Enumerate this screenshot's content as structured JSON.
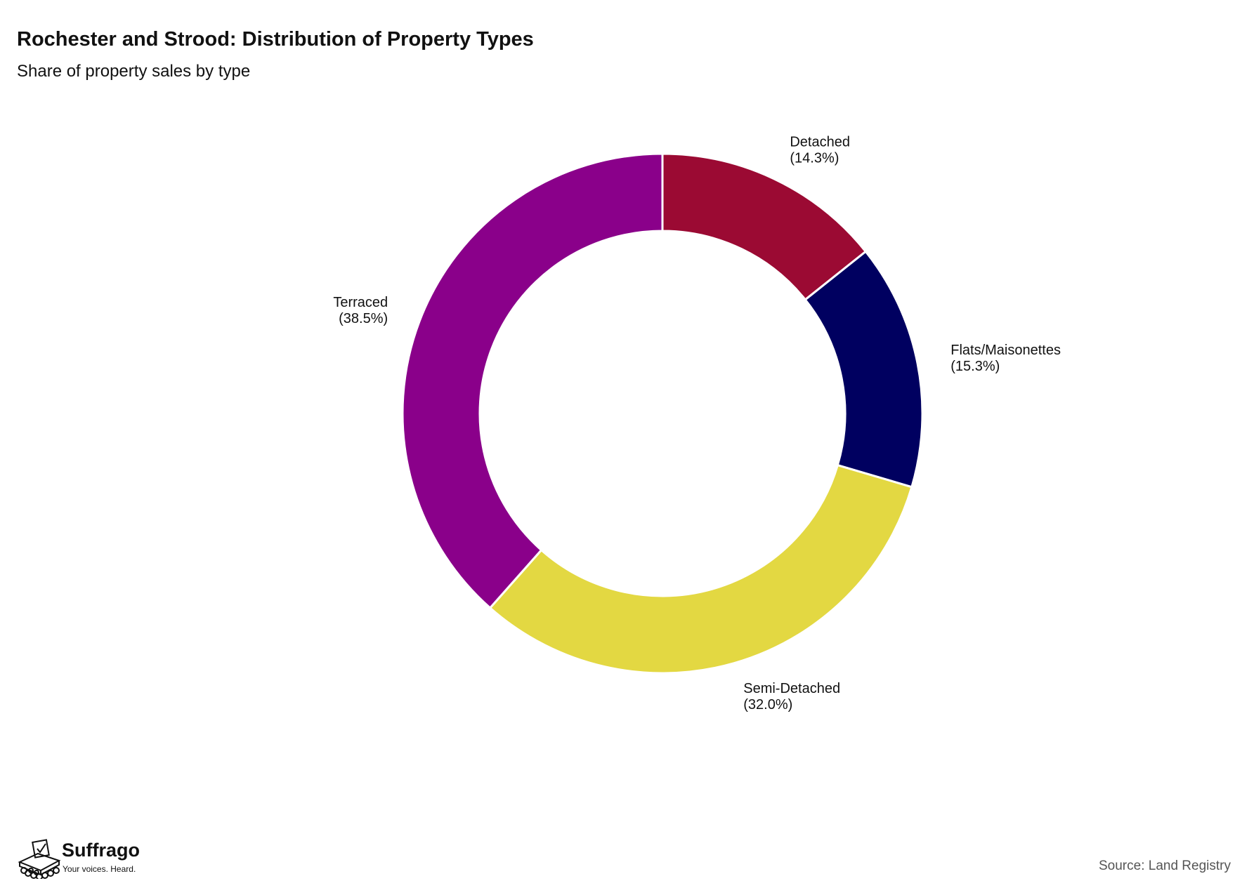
{
  "chart_data": {
    "type": "pie",
    "variant": "donut",
    "title": "Rochester and Strood: Distribution of Property Types",
    "subtitle": "Share of property sales by type",
    "slices": [
      {
        "label": "Detached",
        "value": 14.3,
        "value_label": "(14.3%)",
        "color": "#9B0A33"
      },
      {
        "label": "Flats/Maisonettes",
        "value": 15.3,
        "value_label": "(15.3%)",
        "color": "#000060"
      },
      {
        "label": "Semi-Detached",
        "value": 32.0,
        "value_label": "(32.0%)",
        "color": "#E3D842"
      },
      {
        "label": "Terraced",
        "value": 38.5,
        "value_label": "(38.5%)",
        "color": "#8A008A"
      }
    ]
  },
  "branding": {
    "name": "Suffrago",
    "tagline": "Your voices. Heard."
  },
  "source": "Source: Land Registry"
}
